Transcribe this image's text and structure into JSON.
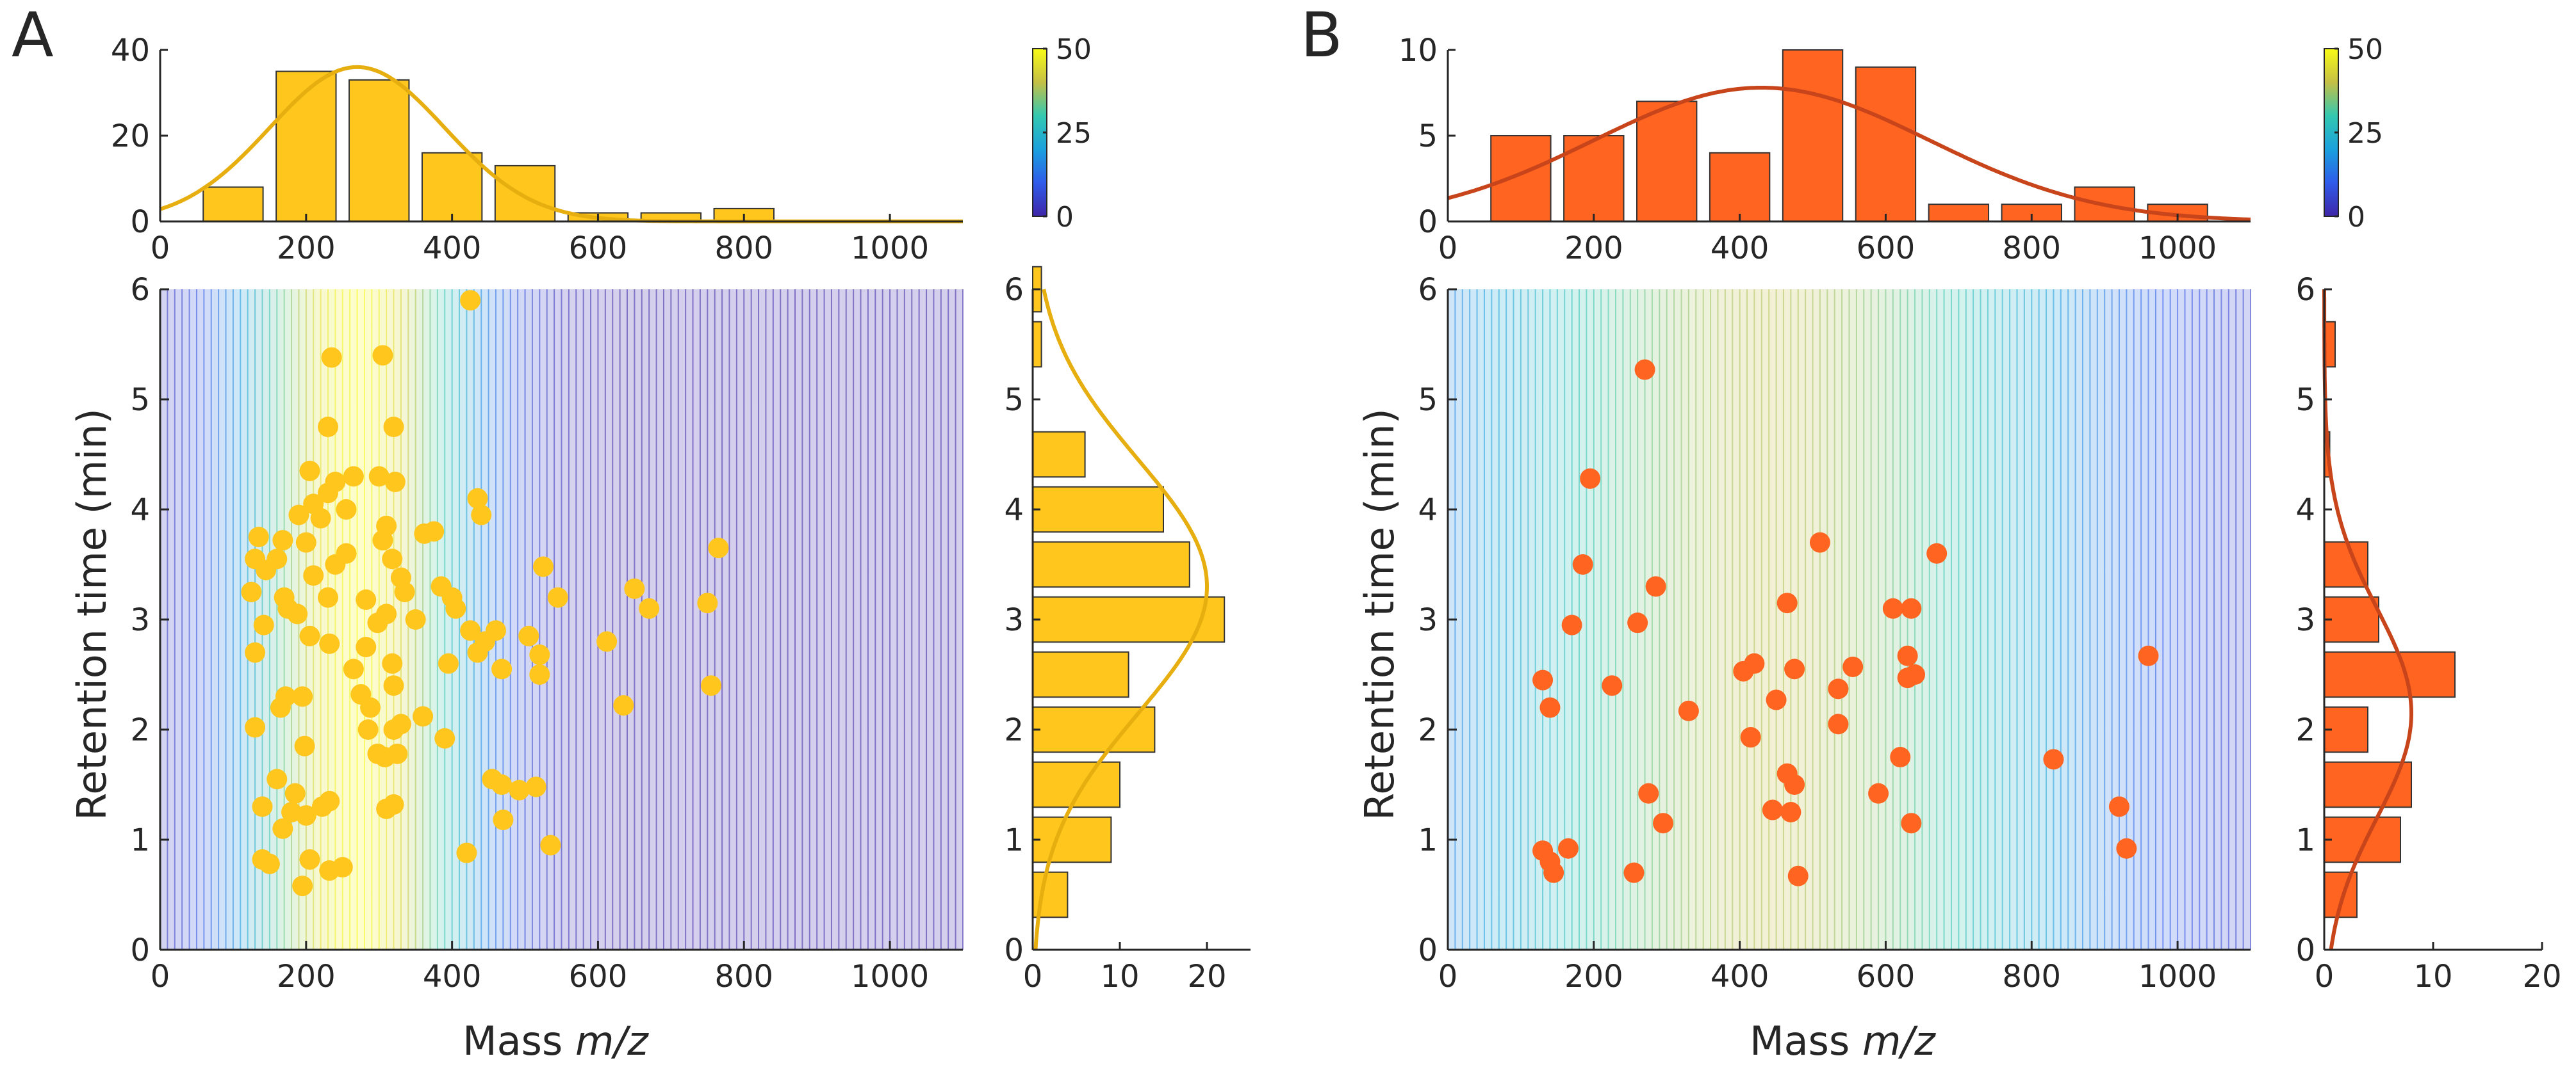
{
  "chart_data": [
    {
      "panel": "A",
      "type": "scatter",
      "xlabel_prefix": "Mass ",
      "xlabel_italic": "m/z",
      "ylabel": "Retention time (min)",
      "xlim": [
        0,
        1100
      ],
      "ylim": [
        0,
        6
      ],
      "xticks": [
        0,
        200,
        400,
        600,
        800,
        1000
      ],
      "yticks": [
        0,
        1,
        2,
        3,
        4,
        5,
        6
      ],
      "colors": {
        "bars": "#FFC61E",
        "fit": "#E6AE0F",
        "points": "#FFC61E",
        "bar_edge": "#333333"
      },
      "colorbar": {
        "min": 0,
        "max": 50,
        "ticks": [
          0,
          25,
          50
        ]
      },
      "density_peak_mz": 270,
      "density_sigma_mz": 115,
      "density_peak_rt": 2.8,
      "density_sigma_rt": 1.6,
      "density_max": 50,
      "top_hist": {
        "ylim": [
          0,
          40
        ],
        "yticks": [
          0,
          20,
          40
        ],
        "bin_width": 100,
        "bins": [
          {
            "center": 100,
            "count": 8
          },
          {
            "center": 200,
            "count": 35
          },
          {
            "center": 300,
            "count": 33
          },
          {
            "center": 400,
            "count": 16
          },
          {
            "center": 500,
            "count": 13
          },
          {
            "center": 600,
            "count": 2
          },
          {
            "center": 700,
            "count": 2
          },
          {
            "center": 800,
            "count": 3
          }
        ],
        "fit": {
          "mean": 270,
          "sigma": 120,
          "peak": 36
        }
      },
      "side_hist": {
        "xlim": [
          0,
          25
        ],
        "xticks": [
          0,
          10,
          20
        ],
        "yticks": [
          0,
          1,
          2,
          3,
          4,
          5,
          6
        ],
        "bin_width": 0.5,
        "bins": [
          {
            "center": 0.5,
            "count": 4
          },
          {
            "center": 1.0,
            "count": 9
          },
          {
            "center": 1.5,
            "count": 10
          },
          {
            "center": 2.0,
            "count": 14
          },
          {
            "center": 2.5,
            "count": 11
          },
          {
            "center": 3.0,
            "count": 22
          },
          {
            "center": 3.5,
            "count": 18
          },
          {
            "center": 4.0,
            "count": 15
          },
          {
            "center": 4.5,
            "count": 6
          },
          {
            "center": 5.5,
            "count": 1
          },
          {
            "center": 6.0,
            "count": 1
          }
        ],
        "fit": {
          "mean": 3.3,
          "sigma": 1.15,
          "peak": 20
        }
      },
      "points": [
        [
          425,
          5.9
        ],
        [
          305,
          5.4
        ],
        [
          235,
          5.38
        ],
        [
          230,
          4.75
        ],
        [
          320,
          4.75
        ],
        [
          205,
          4.35
        ],
        [
          300,
          4.3
        ],
        [
          265,
          4.3
        ],
        [
          240,
          4.25
        ],
        [
          322,
          4.25
        ],
        [
          230,
          4.15
        ],
        [
          435,
          4.1
        ],
        [
          210,
          4.05
        ],
        [
          255,
          4.0
        ],
        [
          440,
          3.95
        ],
        [
          190,
          3.95
        ],
        [
          220,
          3.92
        ],
        [
          310,
          3.85
        ],
        [
          375,
          3.8
        ],
        [
          135,
          3.75
        ],
        [
          168,
          3.72
        ],
        [
          200,
          3.7
        ],
        [
          305,
          3.72
        ],
        [
          362,
          3.78
        ],
        [
          255,
          3.6
        ],
        [
          130,
          3.55
        ],
        [
          160,
          3.55
        ],
        [
          318,
          3.55
        ],
        [
          240,
          3.5
        ],
        [
          525,
          3.48
        ],
        [
          145,
          3.45
        ],
        [
          210,
          3.4
        ],
        [
          330,
          3.38
        ],
        [
          385,
          3.3
        ],
        [
          125,
          3.25
        ],
        [
          170,
          3.2
        ],
        [
          230,
          3.2
        ],
        [
          282,
          3.18
        ],
        [
          335,
          3.25
        ],
        [
          650,
          3.28
        ],
        [
          765,
          3.65
        ],
        [
          545,
          3.2
        ],
        [
          400,
          3.2
        ],
        [
          405,
          3.1
        ],
        [
          175,
          3.1
        ],
        [
          188,
          3.05
        ],
        [
          310,
          3.05
        ],
        [
          670,
          3.1
        ],
        [
          750,
          3.15
        ],
        [
          350,
          3.0
        ],
        [
          298,
          2.97
        ],
        [
          142,
          2.95
        ],
        [
          425,
          2.9
        ],
        [
          460,
          2.9
        ],
        [
          205,
          2.85
        ],
        [
          505,
          2.85
        ],
        [
          445,
          2.8
        ],
        [
          612,
          2.8
        ],
        [
          232,
          2.78
        ],
        [
          282,
          2.75
        ],
        [
          130,
          2.7
        ],
        [
          435,
          2.7
        ],
        [
          520,
          2.68
        ],
        [
          395,
          2.6
        ],
        [
          318,
          2.6
        ],
        [
          468,
          2.55
        ],
        [
          265,
          2.55
        ],
        [
          520,
          2.5
        ],
        [
          320,
          2.4
        ],
        [
          755,
          2.4
        ],
        [
          275,
          2.32
        ],
        [
          172,
          2.3
        ],
        [
          195,
          2.3
        ],
        [
          288,
          2.2
        ],
        [
          635,
          2.22
        ],
        [
          165,
          2.2
        ],
        [
          360,
          2.12
        ],
        [
          330,
          2.05
        ],
        [
          130,
          2.02
        ],
        [
          285,
          2.0
        ],
        [
          320,
          2.0
        ],
        [
          390,
          1.92
        ],
        [
          198,
          1.85
        ],
        [
          298,
          1.78
        ],
        [
          308,
          1.75
        ],
        [
          325,
          1.78
        ],
        [
          160,
          1.55
        ],
        [
          455,
          1.55
        ],
        [
          468,
          1.5
        ],
        [
          492,
          1.45
        ],
        [
          515,
          1.48
        ],
        [
          185,
          1.42
        ],
        [
          232,
          1.35
        ],
        [
          180,
          1.25
        ],
        [
          200,
          1.22
        ],
        [
          222,
          1.3
        ],
        [
          310,
          1.28
        ],
        [
          320,
          1.32
        ],
        [
          470,
          1.18
        ],
        [
          140,
          1.3
        ],
        [
          168,
          1.1
        ],
        [
          140,
          0.82
        ],
        [
          150,
          0.78
        ],
        [
          205,
          0.82
        ],
        [
          232,
          0.72
        ],
        [
          250,
          0.75
        ],
        [
          195,
          0.58
        ],
        [
          420,
          0.88
        ],
        [
          535,
          0.95
        ]
      ]
    },
    {
      "panel": "B",
      "type": "scatter",
      "xlabel_prefix": "Mass ",
      "xlabel_italic": "m/z",
      "ylabel": "Retention time (min)",
      "xlim": [
        0,
        1100
      ],
      "ylim": [
        0,
        6
      ],
      "xticks": [
        0,
        200,
        400,
        600,
        800,
        1000
      ],
      "yticks": [
        0,
        1,
        2,
        3,
        4,
        5,
        6
      ],
      "colors": {
        "bars": "#FF6420",
        "fit": "#C8441A",
        "points": "#FF6420",
        "bar_edge": "#333333"
      },
      "colorbar": {
        "min": 0,
        "max": 50,
        "ticks": [
          0,
          25,
          50
        ]
      },
      "density_peak_mz": 440,
      "density_sigma_mz": 330,
      "density_peak_rt": 2.3,
      "density_sigma_rt": 1.5,
      "density_max": 40,
      "top_hist": {
        "ylim": [
          0,
          10
        ],
        "yticks": [
          0,
          5,
          10
        ],
        "bin_width": 100,
        "bins": [
          {
            "center": 100,
            "count": 5
          },
          {
            "center": 200,
            "count": 5
          },
          {
            "center": 300,
            "count": 7
          },
          {
            "center": 400,
            "count": 4
          },
          {
            "center": 500,
            "count": 10
          },
          {
            "center": 600,
            "count": 9
          },
          {
            "center": 700,
            "count": 1
          },
          {
            "center": 800,
            "count": 1
          },
          {
            "center": 900,
            "count": 2
          },
          {
            "center": 1000,
            "count": 1
          }
        ],
        "fit": {
          "mean": 430,
          "sigma": 230,
          "peak": 7.8
        }
      },
      "side_hist": {
        "xlim": [
          0,
          20
        ],
        "xticks": [
          0,
          10,
          20
        ],
        "yticks": [
          0,
          1,
          2,
          3,
          4,
          5,
          6
        ],
        "bin_width": 0.5,
        "bins": [
          {
            "center": 0.5,
            "count": 3
          },
          {
            "center": 1.0,
            "count": 7
          },
          {
            "center": 1.5,
            "count": 8
          },
          {
            "center": 2.0,
            "count": 4
          },
          {
            "center": 2.5,
            "count": 12
          },
          {
            "center": 3.0,
            "count": 5
          },
          {
            "center": 3.5,
            "count": 4
          },
          {
            "center": 4.5,
            "count": 0.5
          },
          {
            "center": 5.5,
            "count": 1
          }
        ],
        "fit": {
          "mean": 2.15,
          "sigma": 0.95,
          "peak": 8
        }
      },
      "points": [
        [
          270,
          5.27
        ],
        [
          195,
          4.28
        ],
        [
          670,
          3.6
        ],
        [
          510,
          3.7
        ],
        [
          185,
          3.5
        ],
        [
          285,
          3.3
        ],
        [
          465,
          3.15
        ],
        [
          610,
          3.1
        ],
        [
          635,
          3.1
        ],
        [
          170,
          2.95
        ],
        [
          260,
          2.97
        ],
        [
          960,
          2.67
        ],
        [
          630,
          2.67
        ],
        [
          420,
          2.6
        ],
        [
          405,
          2.53
        ],
        [
          475,
          2.55
        ],
        [
          555,
          2.57
        ],
        [
          630,
          2.47
        ],
        [
          640,
          2.5
        ],
        [
          130,
          2.45
        ],
        [
          225,
          2.4
        ],
        [
          535,
          2.37
        ],
        [
          450,
          2.27
        ],
        [
          330,
          2.17
        ],
        [
          140,
          2.2
        ],
        [
          535,
          2.05
        ],
        [
          415,
          1.93
        ],
        [
          620,
          1.75
        ],
        [
          830,
          1.73
        ],
        [
          465,
          1.6
        ],
        [
          590,
          1.42
        ],
        [
          475,
          1.5
        ],
        [
          275,
          1.42
        ],
        [
          445,
          1.27
        ],
        [
          470,
          1.25
        ],
        [
          920,
          1.3
        ],
        [
          635,
          1.15
        ],
        [
          295,
          1.15
        ],
        [
          130,
          0.9
        ],
        [
          165,
          0.92
        ],
        [
          930,
          0.92
        ],
        [
          140,
          0.8
        ],
        [
          145,
          0.7
        ],
        [
          255,
          0.7
        ],
        [
          480,
          0.67
        ]
      ]
    }
  ]
}
